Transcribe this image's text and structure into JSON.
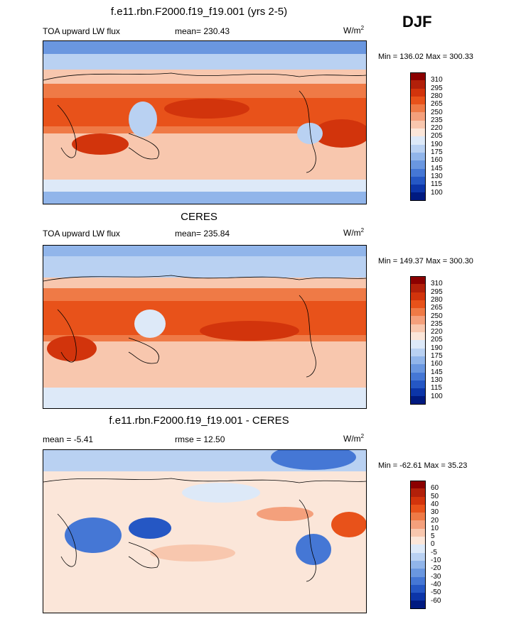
{
  "season": "DJF",
  "panels": [
    {
      "title": "f.e11.rbn.F2000.f19_f19.001 (yrs 2-5)",
      "left_label": "TOA upward LW flux",
      "center_label": "mean= 230.43",
      "units": "W/m",
      "units_sup": "2",
      "minmax": "Min = 136.02 Max = 300.33",
      "colorbar": {
        "labels": [
          "310",
          "295",
          "280",
          "265",
          "250",
          "235",
          "220",
          "205",
          "190",
          "175",
          "160",
          "145",
          "130",
          "115",
          "100"
        ],
        "colors": [
          "#8b0000",
          "#b2200a",
          "#d2340c",
          "#e8521a",
          "#ef7a46",
          "#f4a07c",
          "#f8c7ae",
          "#fbe6d9",
          "#dde9f8",
          "#b9d1f2",
          "#91b5ea",
          "#6a97e0",
          "#4577d5",
          "#2557c4",
          "#0c35a8",
          "#001a80"
        ]
      }
    },
    {
      "title": "CERES",
      "left_label": "TOA upward LW flux",
      "center_label": "mean= 235.84",
      "units": "W/m",
      "units_sup": "2",
      "minmax": "Min = 149.37 Max = 300.30",
      "colorbar": {
        "labels": [
          "310",
          "295",
          "280",
          "265",
          "250",
          "235",
          "220",
          "205",
          "190",
          "175",
          "160",
          "145",
          "130",
          "115",
          "100"
        ],
        "colors": [
          "#8b0000",
          "#b2200a",
          "#d2340c",
          "#e8521a",
          "#ef7a46",
          "#f4a07c",
          "#f8c7ae",
          "#fbe6d9",
          "#dde9f8",
          "#b9d1f2",
          "#91b5ea",
          "#6a97e0",
          "#4577d5",
          "#2557c4",
          "#0c35a8",
          "#001a80"
        ]
      }
    },
    {
      "title": "f.e11.rbn.F2000.f19_f19.001 - CERES",
      "left_label": "mean =  -5.41",
      "center_label": "rmse =  12.50",
      "units": "W/m",
      "units_sup": "2",
      "minmax": "Min = -62.61 Max =  35.23",
      "colorbar": {
        "labels": [
          "60",
          "50",
          "40",
          "30",
          "20",
          "10",
          "5",
          "0",
          "-5",
          "-10",
          "-20",
          "-30",
          "-40",
          "-50",
          "-60"
        ],
        "colors": [
          "#8b0000",
          "#b2200a",
          "#d2340c",
          "#e8521a",
          "#ef7a46",
          "#f4a07c",
          "#f8c7ae",
          "#fbe6d9",
          "#dde9f8",
          "#b9d1f2",
          "#91b5ea",
          "#6a97e0",
          "#4577d5",
          "#2557c4",
          "#0c35a8",
          "#001a80"
        ]
      }
    }
  ]
}
